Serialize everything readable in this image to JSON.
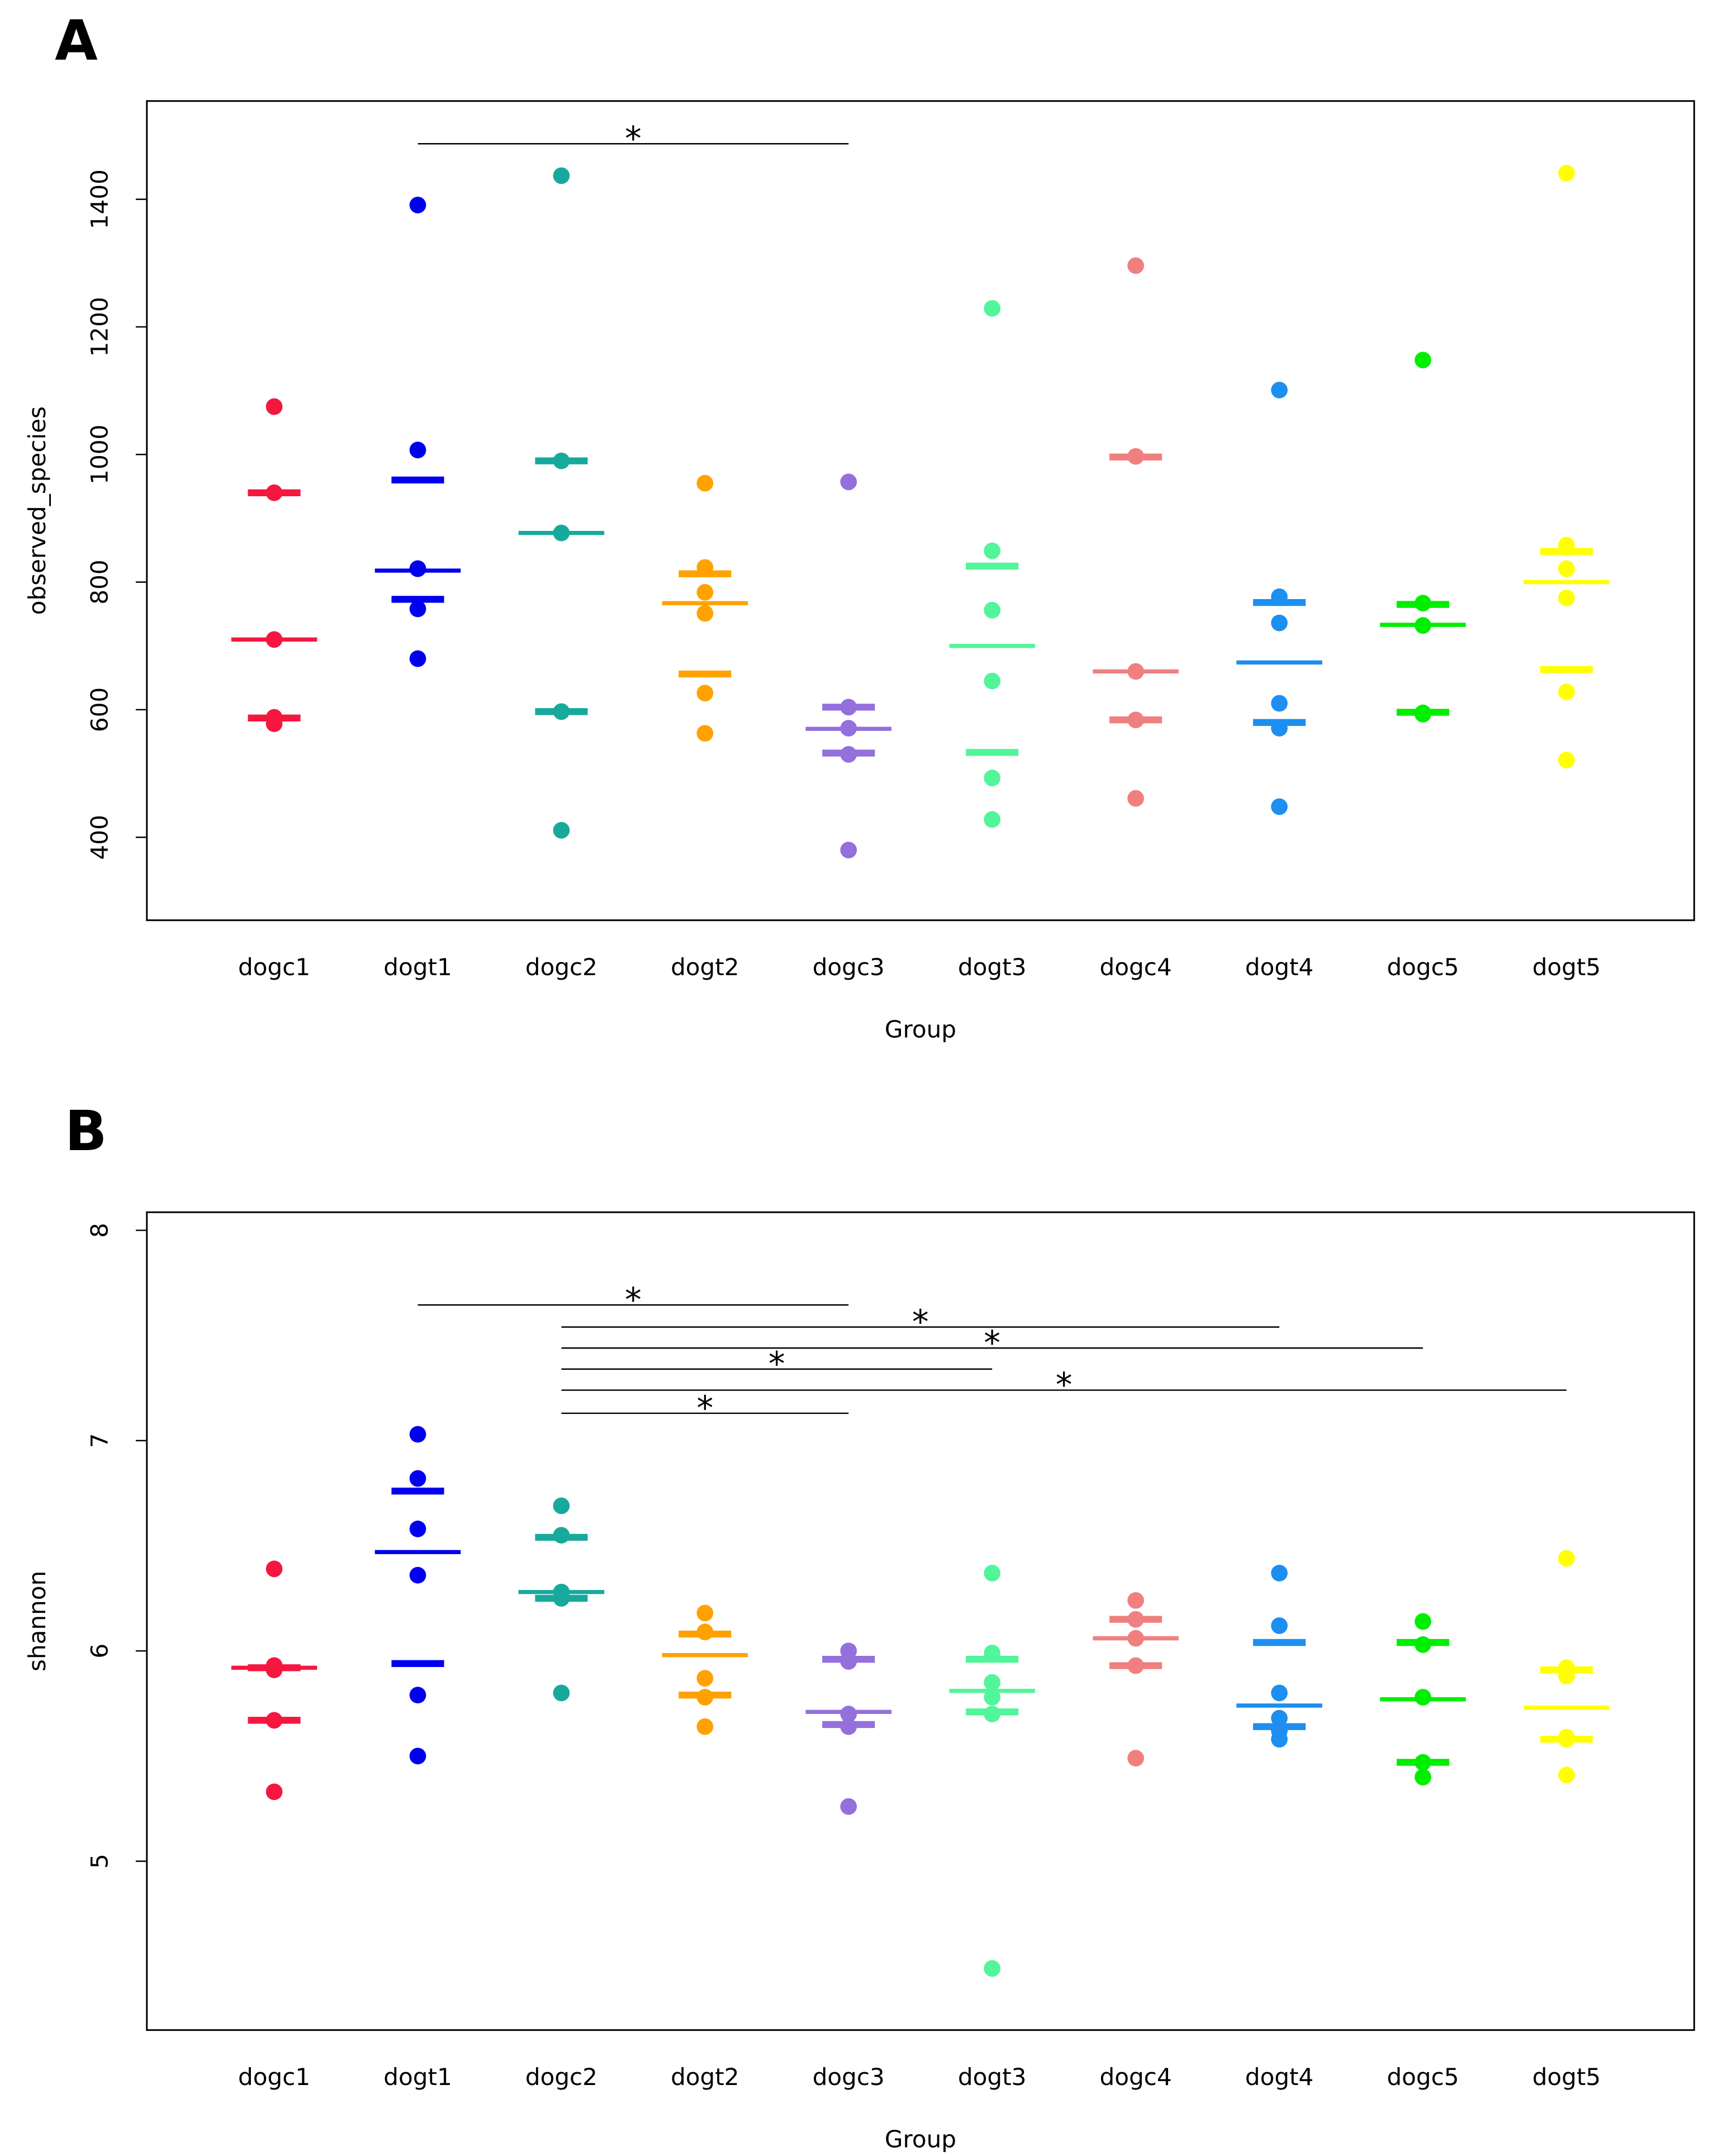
{
  "chart_data": [
    {
      "type": "strip",
      "panel": "A",
      "xlabel": "Group",
      "ylabel": "observed_species",
      "ylim": [
        270,
        1554
      ],
      "yticks": [
        400,
        600,
        800,
        1000,
        1200,
        1400
      ],
      "categories": [
        "dogc1",
        "dogt1",
        "dogc2",
        "dogt2",
        "dogc3",
        "dogt3",
        "dogc4",
        "dogt4",
        "dogc5",
        "dogt5"
      ],
      "groups": [
        {
          "color": "#f5173f",
          "values": [
            1075,
            940,
            710,
            578,
            587,
            588
          ],
          "summary": [
            587,
            710,
            940
          ]
        },
        {
          "color": "#0000ee",
          "values": [
            1391,
            1007,
            821,
            821,
            758,
            680
          ],
          "summary": [
            773,
            818,
            960
          ]
        },
        {
          "color": "#17aa9c",
          "values": [
            1437,
            990,
            877,
            597,
            411
          ],
          "summary": [
            597,
            877,
            990
          ]
        },
        {
          "color": "#ffa200",
          "values": [
            955,
            823,
            784,
            751,
            626,
            563
          ],
          "summary": [
            656,
            767,
            813
          ]
        },
        {
          "color": "#9370db",
          "values": [
            957,
            604,
            571,
            530,
            380
          ],
          "summary": [
            532,
            570,
            604
          ]
        },
        {
          "color": "#52f59a",
          "values": [
            1229,
            849,
            756,
            645,
            493,
            428
          ],
          "summary": [
            533,
            700,
            825
          ]
        },
        {
          "color": "#f08080",
          "values": [
            1296,
            997,
            660,
            584,
            461
          ],
          "summary": [
            584,
            660,
            996
          ]
        },
        {
          "color": "#1c8ff0",
          "values": [
            1101,
            777,
            736,
            610,
            571,
            448
          ],
          "summary": [
            580,
            674,
            768
          ]
        },
        {
          "color": "#00ee00",
          "values": [
            1148,
            767,
            732,
            595,
            593
          ],
          "summary": [
            596,
            733,
            765
          ]
        },
        {
          "color": "#ffff00",
          "values": [
            1441,
            858,
            821,
            775,
            628,
            521
          ],
          "summary": [
            663,
            800,
            848
          ]
        }
      ],
      "annotations": [
        {
          "from": "dogt1",
          "to": "dogc3",
          "y": 1487,
          "label": "*"
        }
      ]
    },
    {
      "type": "strip",
      "panel": "B",
      "xlabel": "Group",
      "ylabel": "shannon",
      "ylim": [
        4.197,
        8.086
      ],
      "yticks": [
        5,
        6,
        7,
        8
      ],
      "categories": [
        "dogc1",
        "dogt1",
        "dogc2",
        "dogt2",
        "dogc3",
        "dogt3",
        "dogc4",
        "dogt4",
        "dogc5",
        "dogt5"
      ],
      "groups": [
        {
          "color": "#f5173f",
          "values": [
            6.39,
            5.93,
            5.91,
            5.93,
            5.67,
            5.33
          ],
          "summary": [
            5.67,
            5.92,
            5.92
          ]
        },
        {
          "color": "#0000ee",
          "values": [
            7.03,
            6.82,
            6.58,
            6.36,
            5.79,
            5.5
          ],
          "summary": [
            5.94,
            6.47,
            6.76
          ]
        },
        {
          "color": "#17aa9c",
          "values": [
            6.69,
            6.55,
            6.28,
            6.25,
            5.8
          ],
          "summary": [
            6.25,
            6.28,
            6.54
          ]
        },
        {
          "color": "#ffa200",
          "values": [
            6.18,
            6.09,
            6.09,
            5.87,
            5.78,
            5.64
          ],
          "summary": [
            5.79,
            5.98,
            6.08
          ]
        },
        {
          "color": "#9370db",
          "values": [
            6.0,
            5.95,
            5.7,
            5.64,
            5.26
          ],
          "summary": [
            5.65,
            5.71,
            5.96
          ]
        },
        {
          "color": "#52f59a",
          "values": [
            6.37,
            5.99,
            5.85,
            5.78,
            5.7,
            4.49
          ],
          "summary": [
            5.71,
            5.81,
            5.96
          ]
        },
        {
          "color": "#f08080",
          "values": [
            6.24,
            6.15,
            6.06,
            5.93,
            5.49
          ],
          "summary": [
            5.93,
            6.06,
            6.15
          ]
        },
        {
          "color": "#1c8ff0",
          "values": [
            6.37,
            6.12,
            5.8,
            5.68,
            5.62,
            5.58
          ],
          "summary": [
            5.64,
            5.74,
            6.04
          ]
        },
        {
          "color": "#00ee00",
          "values": [
            6.14,
            6.03,
            5.78,
            5.47,
            5.4
          ],
          "summary": [
            5.47,
            5.77,
            6.04
          ]
        },
        {
          "color": "#ffff00",
          "values": [
            6.44,
            5.92,
            5.88,
            5.59,
            5.58,
            5.41
          ],
          "summary": [
            5.58,
            5.73,
            5.91
          ]
        }
      ],
      "annotations": [
        {
          "from": "dogt1",
          "to": "dogc3",
          "y": 7.645,
          "label": "*"
        },
        {
          "from": "dogc2",
          "to": "dogt4",
          "y": 7.54,
          "label": "*"
        },
        {
          "from": "dogc2",
          "to": "dogc5",
          "y": 7.44,
          "label": "*"
        },
        {
          "from": "dogc2",
          "to": "dogt3",
          "y": 7.34,
          "label": "*"
        },
        {
          "from": "dogc2",
          "to": "dogt5",
          "y": 7.24,
          "label": "*"
        },
        {
          "from": "dogc2",
          "to": "dogc3",
          "y": 7.13,
          "label": "*"
        }
      ]
    }
  ]
}
